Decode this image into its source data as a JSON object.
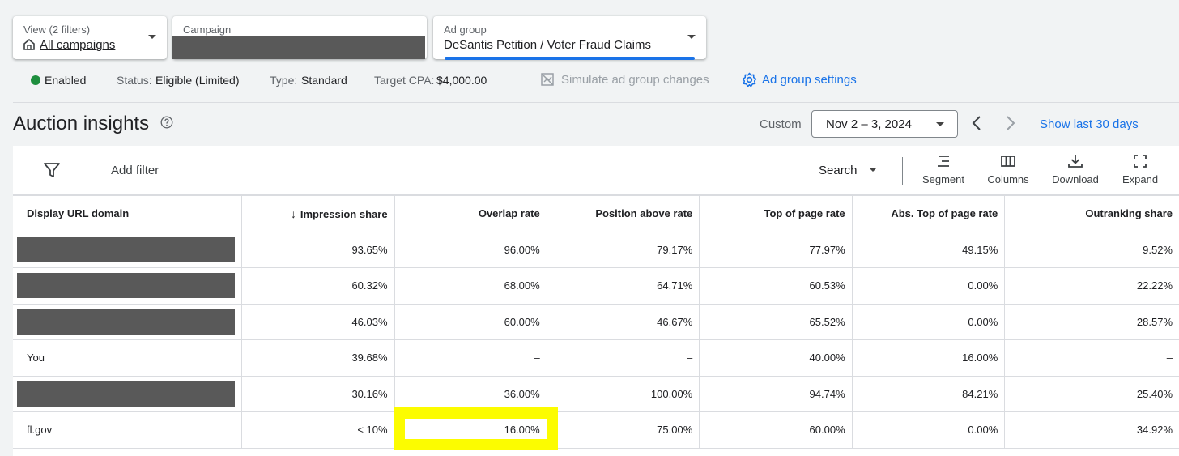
{
  "filters": {
    "view_label": "View (2 filters)",
    "view_value": "All campaigns",
    "campaign_label": "Campaign",
    "adgroup_label": "Ad group",
    "adgroup_value": "DeSantis Petition / Voter Fraud Claims"
  },
  "status_row": {
    "enabled": "Enabled",
    "status_label": "Status:",
    "status_value": "Eligible (Limited)",
    "type_label": "Type:",
    "type_value": "Standard",
    "cpa_label": "Target CPA:",
    "cpa_value": "$4,000.00",
    "simulate": "Simulate ad group changes",
    "settings": "Ad group settings"
  },
  "page": {
    "title": "Auction insights",
    "custom": "Custom",
    "date_range": "Nov 2 – 3, 2024",
    "show_last": "Show last 30 days"
  },
  "toolbar": {
    "add_filter": "Add filter",
    "search": "Search",
    "segment": "Segment",
    "columns": "Columns",
    "download": "Download",
    "expand": "Expand"
  },
  "table": {
    "headers": [
      "Display URL domain",
      "Impression share",
      "Overlap rate",
      "Position above rate",
      "Top of page rate",
      "Abs. Top of page rate",
      "Outranking share"
    ],
    "rows": [
      [
        "",
        "93.65%",
        "96.00%",
        "79.17%",
        "77.97%",
        "49.15%",
        "9.52%"
      ],
      [
        "",
        "60.32%",
        "68.00%",
        "64.71%",
        "60.53%",
        "0.00%",
        "22.22%"
      ],
      [
        "",
        "46.03%",
        "60.00%",
        "46.67%",
        "65.52%",
        "0.00%",
        "28.57%"
      ],
      [
        "You",
        "39.68%",
        "–",
        "–",
        "40.00%",
        "16.00%",
        "–"
      ],
      [
        "",
        "30.16%",
        "36.00%",
        "100.00%",
        "94.74%",
        "84.21%",
        "25.40%"
      ],
      [
        "fl.gov",
        "< 10%",
        "16.00%",
        "75.00%",
        "60.00%",
        "0.00%",
        "34.92%"
      ]
    ]
  },
  "colors": {
    "accent": "#1a73e8",
    "enabled": "#1e8e3e",
    "highlight": "#fcfc00",
    "redaction": "#595959"
  }
}
